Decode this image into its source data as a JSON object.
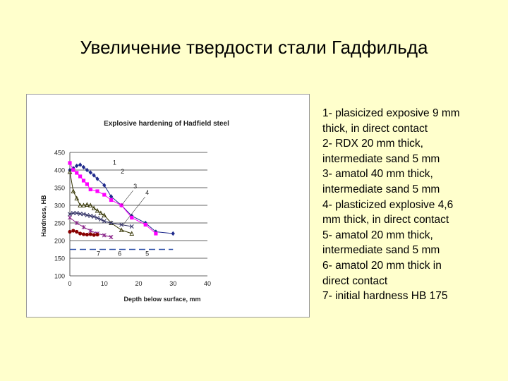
{
  "slide": {
    "title": "Увеличение твердости стали Гадфильда",
    "legend_lines": [
      "1- plasicized exposive 9 mm",
      "thick, in direct contact",
      "2- RDX 20 mm thick,",
      "intermediate sand 5 mm",
      "3- amatol 40 mm thick,",
      "intermediate sand 5 mm",
      "4- plasticized explosive 4,6",
      "mm thick, in direct contact",
      "5- amatol 20 mm thick,",
      "intermediate sand 5 mm",
      "6- amatol 20 mm thick in",
      "direct contact",
      "7- initial hardness HB 175"
    ]
  },
  "chart_data": {
    "type": "line",
    "title": "Explosive hardening of Hadfield steel",
    "xlabel": "Depth below surface, mm",
    "ylabel": "Hardness, HB",
    "xlim": [
      0,
      40
    ],
    "ylim": [
      100,
      450
    ],
    "xticks": [
      0,
      10,
      20,
      30,
      40
    ],
    "yticks": [
      100,
      150,
      200,
      250,
      300,
      350,
      400,
      450
    ],
    "grid": "horizontal",
    "series": [
      {
        "name": "1",
        "color": "#1f2a8c",
        "marker": "diamond",
        "x": [
          0,
          1,
          2,
          3,
          4,
          5,
          6,
          7,
          8,
          10,
          12,
          15,
          18,
          22,
          25,
          30
        ],
        "y": [
          400,
          405,
          412,
          415,
          408,
          400,
          393,
          385,
          375,
          357,
          325,
          300,
          270,
          250,
          225,
          220
        ]
      },
      {
        "name": "2",
        "color": "#ff00ff",
        "marker": "square",
        "x": [
          0,
          1,
          2,
          3,
          4,
          5,
          6,
          8,
          10,
          12,
          15,
          18,
          22,
          25
        ],
        "y": [
          420,
          400,
          392,
          382,
          370,
          360,
          345,
          340,
          330,
          315,
          300,
          265,
          245,
          220
        ]
      },
      {
        "name": "3",
        "color": "#333300",
        "marker": "triangle",
        "x": [
          0,
          1,
          2,
          3,
          4,
          5,
          6,
          7,
          8,
          9,
          10,
          12,
          15,
          18
        ],
        "y": [
          395,
          340,
          320,
          300,
          300,
          302,
          300,
          292,
          285,
          278,
          272,
          250,
          230,
          220
        ]
      },
      {
        "name": "4",
        "color": "#333366",
        "marker": "x",
        "x": [
          0,
          1,
          2,
          3,
          4,
          5,
          6,
          7,
          8,
          9,
          10,
          12,
          15,
          18
        ],
        "y": [
          275,
          278,
          278,
          276,
          275,
          272,
          270,
          268,
          264,
          260,
          255,
          250,
          245,
          240
        ]
      },
      {
        "name": "5",
        "color": "#882288",
        "marker": "star",
        "x": [
          0,
          2,
          4,
          6,
          8,
          10,
          12
        ],
        "y": [
          265,
          250,
          238,
          228,
          220,
          215,
          210
        ]
      },
      {
        "name": "6",
        "color": "#880000",
        "marker": "circle",
        "x": [
          0,
          1,
          2,
          3,
          4,
          5,
          6,
          7,
          8
        ],
        "y": [
          225,
          228,
          225,
          220,
          218,
          217,
          218,
          216,
          217
        ]
      },
      {
        "name": "7",
        "color": "#3355aa",
        "marker": "none",
        "dashed": true,
        "x": [
          0,
          30
        ],
        "y": [
          175,
          175
        ]
      }
    ],
    "annotations": [
      {
        "text": "1",
        "x": 13,
        "y": 415
      },
      {
        "text": "2",
        "x": 15.3,
        "y": 390
      },
      {
        "text": "3",
        "x": 19,
        "y": 348
      },
      {
        "text": "4",
        "x": 22.5,
        "y": 330
      },
      {
        "text": "7",
        "x": 8.3,
        "y": 157
      },
      {
        "text": "6",
        "x": 14.5,
        "y": 157
      },
      {
        "text": "5",
        "x": 22.5,
        "y": 157
      }
    ]
  }
}
